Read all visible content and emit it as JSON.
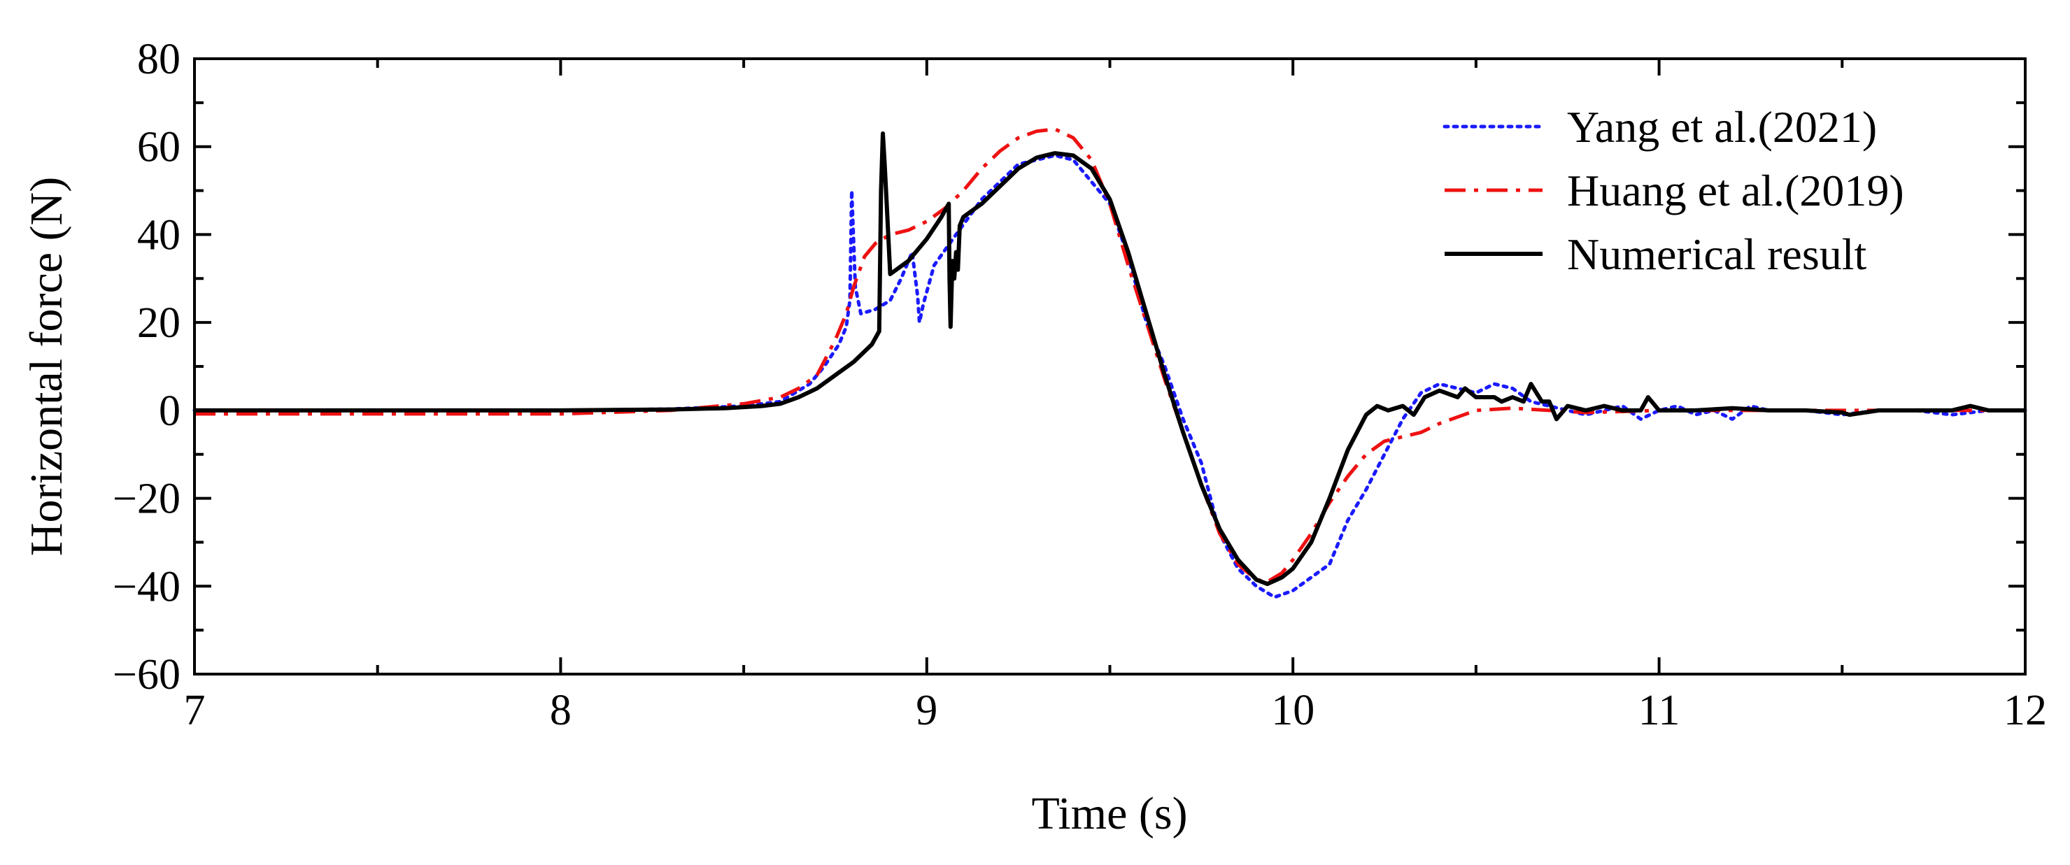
{
  "chart_data": {
    "type": "line",
    "title": "",
    "xlabel": "Time (s)",
    "ylabel": "Horizontal force (N)",
    "xlim": [
      7,
      12
    ],
    "ylim": [
      -60,
      80
    ],
    "x_ticks": [
      7,
      8,
      9,
      10,
      11,
      12
    ],
    "x_tick_labels": [
      "7",
      "8",
      "9",
      "10",
      "11",
      "12"
    ],
    "y_ticks": [
      -60,
      -40,
      -20,
      0,
      20,
      40,
      60,
      80
    ],
    "y_tick_labels": [
      "−60",
      "−40",
      "−20",
      "0",
      "20",
      "40",
      "60",
      "80"
    ],
    "x_minor_ticks": [
      7.5,
      8.5,
      9.5,
      10.5,
      11.5
    ],
    "y_minor_ticks": [
      -50,
      -30,
      -10,
      10,
      30,
      50,
      70
    ],
    "grid": false,
    "legend_position": "top-right",
    "series": [
      {
        "name": "Yang et al.(2021)",
        "color": "#1a1aff",
        "style": "dotted",
        "points": [
          [
            7.0,
            0
          ],
          [
            7.5,
            0
          ],
          [
            8.0,
            0
          ],
          [
            8.3,
            0.3
          ],
          [
            8.5,
            1
          ],
          [
            8.6,
            2
          ],
          [
            8.68,
            6
          ],
          [
            8.72,
            10
          ],
          [
            8.76,
            15
          ],
          [
            8.78,
            19
          ],
          [
            8.79,
            25
          ],
          [
            8.795,
            50
          ],
          [
            8.805,
            28
          ],
          [
            8.82,
            22
          ],
          [
            8.86,
            23
          ],
          [
            8.9,
            25
          ],
          [
            8.93,
            30
          ],
          [
            8.96,
            36
          ],
          [
            8.975,
            26
          ],
          [
            8.98,
            20
          ],
          [
            8.99,
            24
          ],
          [
            9.02,
            33
          ],
          [
            9.08,
            40
          ],
          [
            9.15,
            48
          ],
          [
            9.25,
            56
          ],
          [
            9.35,
            58
          ],
          [
            9.4,
            57
          ],
          [
            9.45,
            52
          ],
          [
            9.5,
            47
          ],
          [
            9.55,
            35
          ],
          [
            9.6,
            20
          ],
          [
            9.65,
            10
          ],
          [
            9.7,
            -2
          ],
          [
            9.75,
            -12
          ],
          [
            9.8,
            -28
          ],
          [
            9.85,
            -36
          ],
          [
            9.9,
            -40
          ],
          [
            9.95,
            -42.5
          ],
          [
            10.0,
            -41
          ],
          [
            10.05,
            -38
          ],
          [
            10.1,
            -35
          ],
          [
            10.15,
            -25
          ],
          [
            10.2,
            -18
          ],
          [
            10.25,
            -10
          ],
          [
            10.3,
            -2
          ],
          [
            10.35,
            4
          ],
          [
            10.4,
            6
          ],
          [
            10.45,
            5
          ],
          [
            10.5,
            4
          ],
          [
            10.55,
            6
          ],
          [
            10.6,
            5
          ],
          [
            10.65,
            2
          ],
          [
            10.7,
            1
          ],
          [
            10.75,
            0
          ],
          [
            10.8,
            -1
          ],
          [
            10.85,
            0
          ],
          [
            10.9,
            1
          ],
          [
            10.95,
            -2
          ],
          [
            11.0,
            0
          ],
          [
            11.05,
            1
          ],
          [
            11.1,
            -1
          ],
          [
            11.15,
            0
          ],
          [
            11.2,
            -2
          ],
          [
            11.25,
            1
          ],
          [
            11.3,
            0
          ],
          [
            11.4,
            0
          ],
          [
            11.5,
            -1
          ],
          [
            11.6,
            0
          ],
          [
            11.7,
            0
          ],
          [
            11.8,
            -1
          ],
          [
            11.9,
            0
          ],
          [
            12.0,
            0
          ]
        ]
      },
      {
        "name": "Huang et al.(2019)",
        "color": "#ee1111",
        "style": "dashdot",
        "points": [
          [
            7.0,
            -0.8
          ],
          [
            7.2,
            -0.8
          ],
          [
            7.5,
            -0.8
          ],
          [
            8.0,
            -0.8
          ],
          [
            8.3,
            0
          ],
          [
            8.5,
            1.5
          ],
          [
            8.6,
            3
          ],
          [
            8.65,
            5
          ],
          [
            8.7,
            8
          ],
          [
            8.75,
            16
          ],
          [
            8.78,
            22
          ],
          [
            8.8,
            28
          ],
          [
            8.83,
            35
          ],
          [
            8.86,
            38
          ],
          [
            8.9,
            40
          ],
          [
            8.95,
            41
          ],
          [
            9.0,
            43
          ],
          [
            9.05,
            46
          ],
          [
            9.1,
            50
          ],
          [
            9.15,
            55
          ],
          [
            9.2,
            59
          ],
          [
            9.25,
            62
          ],
          [
            9.3,
            63.5
          ],
          [
            9.35,
            64
          ],
          [
            9.4,
            62
          ],
          [
            9.45,
            57
          ],
          [
            9.5,
            47
          ],
          [
            9.55,
            33
          ],
          [
            9.6,
            20
          ],
          [
            9.65,
            7
          ],
          [
            9.7,
            -5
          ],
          [
            9.75,
            -17
          ],
          [
            9.8,
            -28
          ],
          [
            9.85,
            -35
          ],
          [
            9.9,
            -38.5
          ],
          [
            9.93,
            -39
          ],
          [
            9.97,
            -37
          ],
          [
            10.0,
            -34
          ],
          [
            10.05,
            -28
          ],
          [
            10.1,
            -21
          ],
          [
            10.15,
            -15
          ],
          [
            10.2,
            -10
          ],
          [
            10.25,
            -7
          ],
          [
            10.3,
            -6
          ],
          [
            10.35,
            -5
          ],
          [
            10.4,
            -3
          ],
          [
            10.45,
            -1.5
          ],
          [
            10.5,
            0
          ],
          [
            10.6,
            0.5
          ],
          [
            10.7,
            0
          ],
          [
            10.8,
            -0.5
          ],
          [
            11.0,
            0
          ],
          [
            11.2,
            0
          ],
          [
            11.5,
            0
          ],
          [
            11.8,
            0
          ],
          [
            12.0,
            0
          ]
        ]
      },
      {
        "name": "Numerical result",
        "color": "#000000",
        "style": "solid",
        "points": [
          [
            7.0,
            0
          ],
          [
            7.5,
            0
          ],
          [
            8.0,
            0
          ],
          [
            8.3,
            0.2
          ],
          [
            8.45,
            0.5
          ],
          [
            8.55,
            1
          ],
          [
            8.6,
            1.5
          ],
          [
            8.65,
            3
          ],
          [
            8.7,
            5
          ],
          [
            8.75,
            8
          ],
          [
            8.8,
            11
          ],
          [
            8.85,
            15
          ],
          [
            8.87,
            18
          ],
          [
            8.875,
            50
          ],
          [
            8.88,
            63
          ],
          [
            8.885,
            56
          ],
          [
            8.89,
            48
          ],
          [
            8.9,
            31
          ],
          [
            8.95,
            34
          ],
          [
            9.0,
            39
          ],
          [
            9.04,
            44
          ],
          [
            9.06,
            47
          ],
          [
            9.062,
            30
          ],
          [
            9.065,
            19
          ],
          [
            9.07,
            34
          ],
          [
            9.075,
            30
          ],
          [
            9.08,
            36
          ],
          [
            9.085,
            32
          ],
          [
            9.09,
            42
          ],
          [
            9.1,
            44
          ],
          [
            9.15,
            47
          ],
          [
            9.2,
            51
          ],
          [
            9.25,
            55
          ],
          [
            9.3,
            57.5
          ],
          [
            9.35,
            58.5
          ],
          [
            9.4,
            58
          ],
          [
            9.45,
            55
          ],
          [
            9.5,
            48
          ],
          [
            9.55,
            36
          ],
          [
            9.6,
            22
          ],
          [
            9.65,
            8
          ],
          [
            9.7,
            -5
          ],
          [
            9.75,
            -17
          ],
          [
            9.8,
            -27
          ],
          [
            9.85,
            -34
          ],
          [
            9.9,
            -38.5
          ],
          [
            9.93,
            -39.5
          ],
          [
            9.97,
            -38
          ],
          [
            10.0,
            -36
          ],
          [
            10.05,
            -30
          ],
          [
            10.1,
            -20
          ],
          [
            10.15,
            -9
          ],
          [
            10.2,
            -1
          ],
          [
            10.23,
            1
          ],
          [
            10.26,
            0
          ],
          [
            10.3,
            1
          ],
          [
            10.33,
            -1
          ],
          [
            10.36,
            3
          ],
          [
            10.4,
            4.5
          ],
          [
            10.45,
            3
          ],
          [
            10.47,
            5
          ],
          [
            10.5,
            3
          ],
          [
            10.55,
            3
          ],
          [
            10.57,
            2
          ],
          [
            10.6,
            3
          ],
          [
            10.63,
            2
          ],
          [
            10.65,
            6
          ],
          [
            10.68,
            2
          ],
          [
            10.7,
            2
          ],
          [
            10.72,
            -2
          ],
          [
            10.75,
            1
          ],
          [
            10.8,
            0
          ],
          [
            10.85,
            1
          ],
          [
            10.9,
            0
          ],
          [
            10.95,
            0
          ],
          [
            10.97,
            3
          ],
          [
            11.0,
            0
          ],
          [
            11.1,
            0
          ],
          [
            11.2,
            0.5
          ],
          [
            11.3,
            0
          ],
          [
            11.4,
            0
          ],
          [
            11.5,
            -0.5
          ],
          [
            11.52,
            -1
          ],
          [
            11.6,
            0
          ],
          [
            11.7,
            0
          ],
          [
            11.8,
            0
          ],
          [
            11.85,
            1
          ],
          [
            11.9,
            0
          ],
          [
            12.0,
            0
          ]
        ]
      }
    ]
  }
}
